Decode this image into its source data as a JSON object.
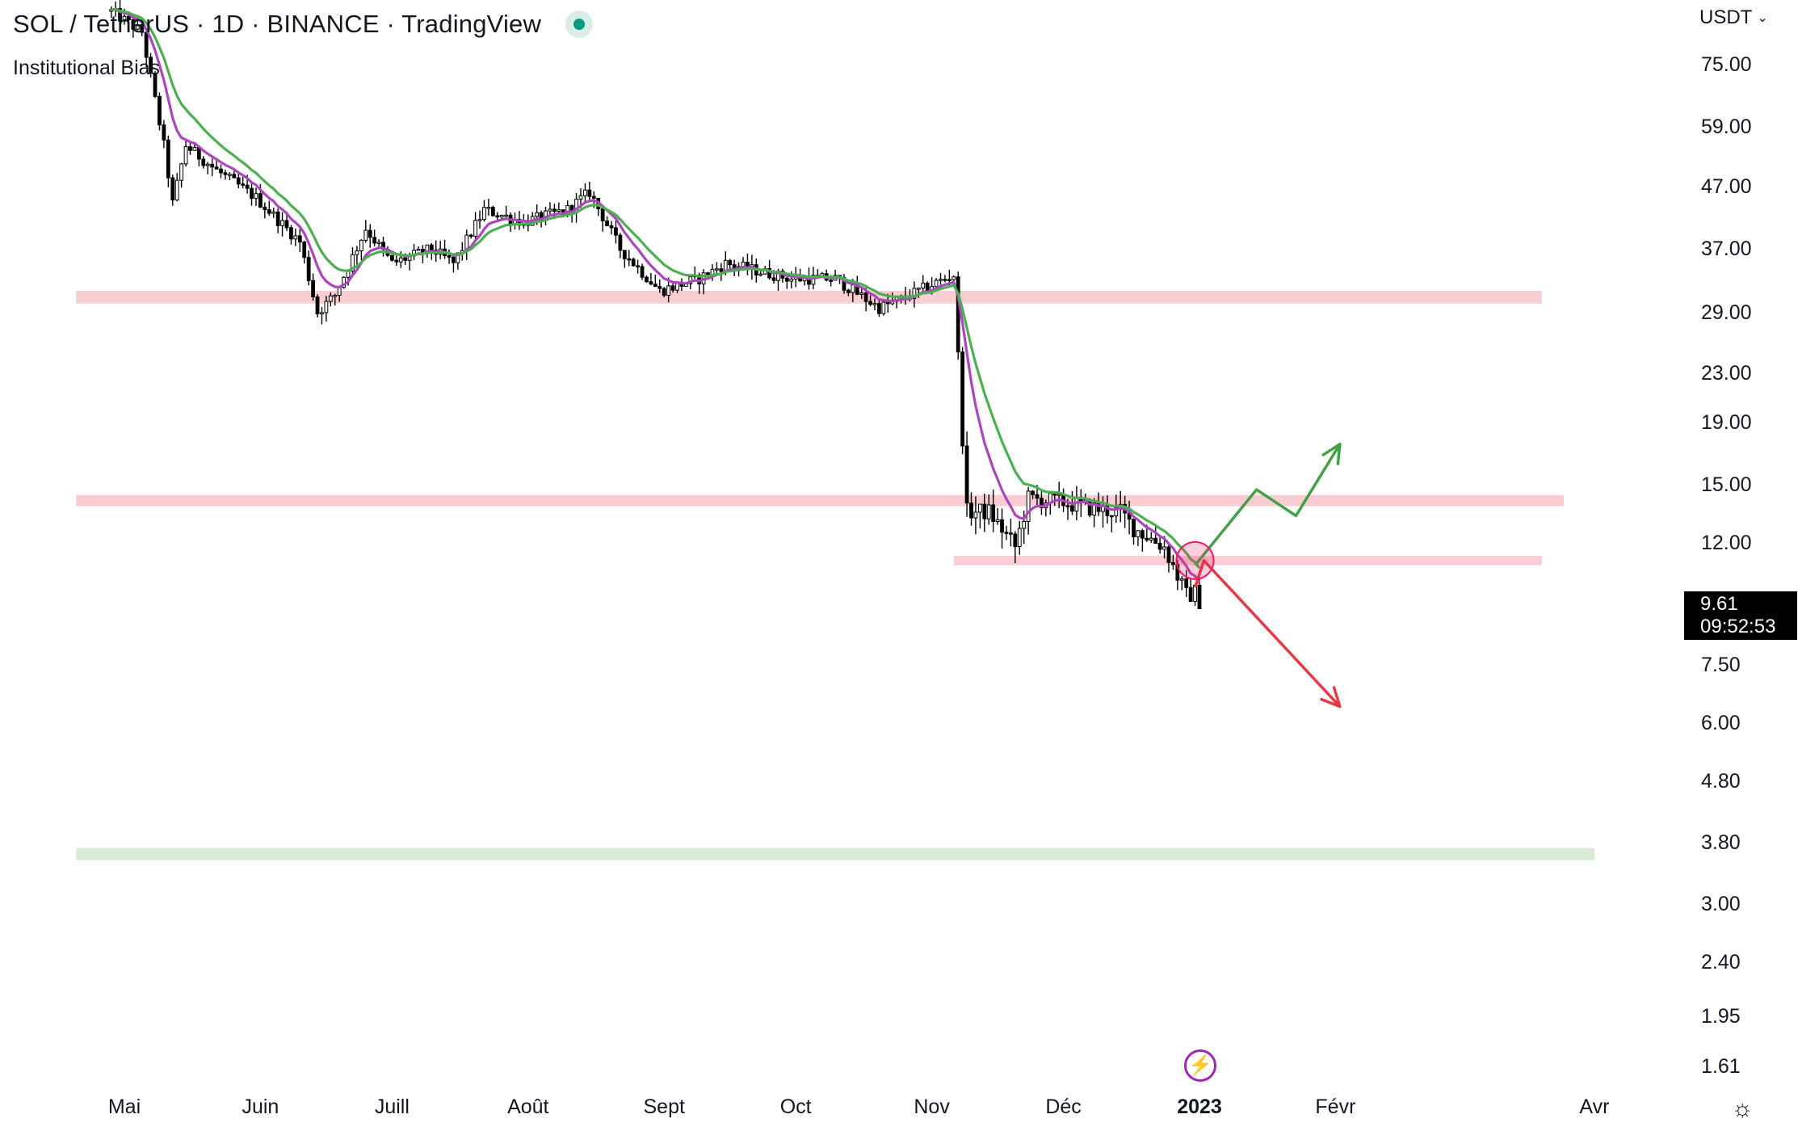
{
  "header": {
    "title": "SOL / TetherUS · 1D · BINANCE · TradingView",
    "indicator": "Institutional Bias"
  },
  "price_scale": {
    "currency": "USDT",
    "last_price": "9.61",
    "countdown": "09:52:53"
  },
  "icons": {
    "live": "live-status-icon",
    "flash": "lightning-icon",
    "settings": "gear-icon"
  },
  "colors": {
    "candle": "#000000",
    "ema_fast": "#ab47bc",
    "ema_slow": "#4caf50",
    "resistance_zone": "#f9cdd1",
    "support_zone": "#d8ecd3",
    "arrow_up": "#43a047",
    "arrow_down": "#e53945",
    "marker": "#e91e63"
  },
  "chart_data": {
    "type": "candlestick",
    "scale": "log",
    "ylim": [
      1.5,
      95
    ],
    "y_ticks": [
      "75.00",
      "59.00",
      "47.00",
      "37.00",
      "29.00",
      "23.00",
      "19.00",
      "15.00",
      "12.00",
      "7.50",
      "6.00",
      "4.80",
      "3.80",
      "3.00",
      "2.40",
      "1.95",
      "1.61"
    ],
    "x_ticks": [
      "Mai",
      "Juin",
      "Juill",
      "Août",
      "Sept",
      "Oct",
      "Nov",
      "Déc",
      "2023",
      "Févr",
      "Avr"
    ],
    "x_ticks_bold": [
      "2023"
    ],
    "price_path": [
      [
        "2022-04-28",
        92
      ],
      [
        "2022-05-05",
        85
      ],
      [
        "2022-05-10",
        55
      ],
      [
        "2022-05-12",
        44
      ],
      [
        "2022-05-15",
        55
      ],
      [
        "2022-05-22",
        50
      ],
      [
        "2022-05-31",
        45
      ],
      [
        "2022-06-10",
        38
      ],
      [
        "2022-06-14",
        29
      ],
      [
        "2022-06-18",
        31
      ],
      [
        "2022-06-25",
        40
      ],
      [
        "2022-07-01",
        35
      ],
      [
        "2022-07-10",
        37
      ],
      [
        "2022-07-15",
        35
      ],
      [
        "2022-07-22",
        43
      ],
      [
        "2022-07-31",
        41
      ],
      [
        "2022-08-10",
        43
      ],
      [
        "2022-08-15",
        46
      ],
      [
        "2022-08-22",
        37
      ],
      [
        "2022-08-31",
        31.5
      ],
      [
        "2022-09-09",
        33
      ],
      [
        "2022-09-15",
        35
      ],
      [
        "2022-09-30",
        33
      ],
      [
        "2022-10-10",
        33
      ],
      [
        "2022-10-20",
        29.5
      ],
      [
        "2022-10-25",
        30.5
      ],
      [
        "2022-10-31",
        32
      ],
      [
        "2022-11-06",
        33.5
      ],
      [
        "2022-11-08",
        18
      ],
      [
        "2022-11-09",
        13.5
      ],
      [
        "2022-11-14",
        13.5
      ],
      [
        "2022-11-20",
        11.8
      ],
      [
        "2022-11-23",
        14.2
      ],
      [
        "2022-12-01",
        14.0
      ],
      [
        "2022-12-10",
        13.6
      ],
      [
        "2022-12-14",
        13.5
      ],
      [
        "2022-12-17",
        12.7
      ],
      [
        "2022-12-24",
        11.8
      ],
      [
        "2022-12-29",
        9.8
      ],
      [
        "2022-12-31",
        9.9
      ],
      [
        "2023-01-01",
        9.61
      ]
    ],
    "series": [
      {
        "name": "",
        "color": "#ab47bc",
        "kind": "ema_fast"
      },
      {
        "name": "",
        "color": "#4caf50",
        "kind": "ema_slow"
      }
    ],
    "zones": [
      {
        "type": "resistance",
        "low": 30.0,
        "high": 31.5,
        "from": "2022-04-20",
        "to": "2023-03-20"
      },
      {
        "type": "resistance",
        "low": 13.8,
        "high": 14.4,
        "from": "2022-04-20",
        "to": "2023-03-25"
      },
      {
        "type": "resistance",
        "low": 11.0,
        "high": 11.4,
        "from": "2022-11-06",
        "to": "2023-03-20"
      },
      {
        "type": "support",
        "low": 3.55,
        "high": 3.72,
        "from": "2022-04-20",
        "to": "2023-04-01"
      }
    ],
    "projections": [
      {
        "direction": "up",
        "points": [
          [
            "2022-12-31",
            11.0
          ],
          [
            "2023-01-14",
            14.7
          ],
          [
            "2023-01-23",
            13.3
          ],
          [
            "2023-02-02",
            17.5
          ]
        ]
      },
      {
        "direction": "down",
        "points": [
          [
            "2022-12-31",
            10.1
          ],
          [
            "2023-01-02",
            11.2
          ],
          [
            "2023-02-02",
            6.4
          ]
        ]
      }
    ],
    "marker": {
      "date": "2022-12-31",
      "price": 11.2
    }
  }
}
